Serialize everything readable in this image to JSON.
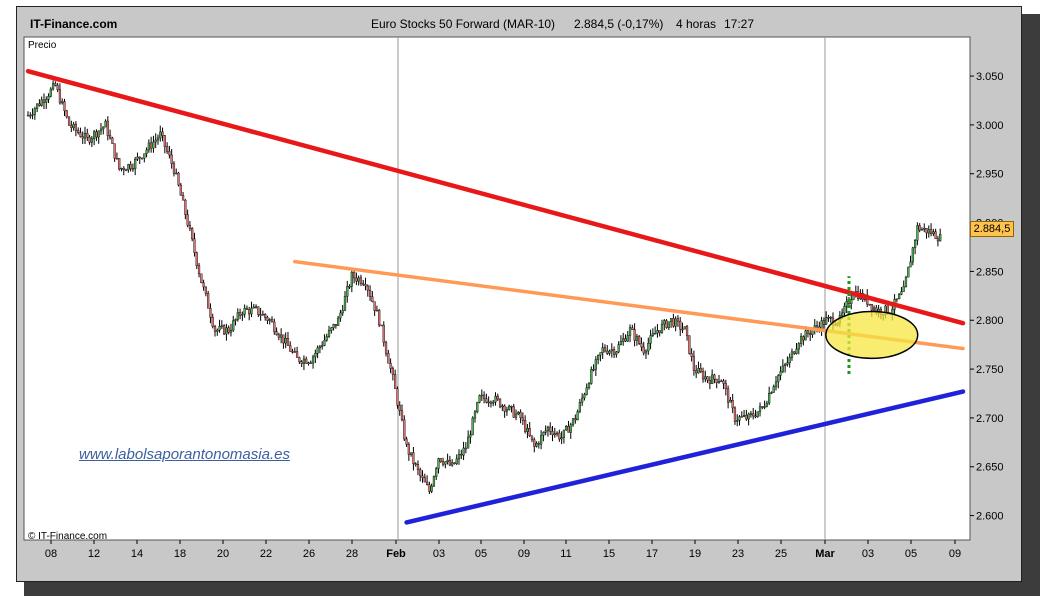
{
  "header": {
    "site": "IT-Finance.com",
    "instrument": "Euro Stocks 50 Forward (MAR-10)",
    "last": "2.884,5 (-0,17%)",
    "timeframe": "4 horas",
    "time": "17:27"
  },
  "chart_data": {
    "type": "candlestick",
    "title": "Euro Stocks 50 Forward (MAR-10)",
    "ylabel": "Precio",
    "ylim": [
      2575,
      3090
    ],
    "yticks": [
      "2.600",
      "2.650",
      "2.700",
      "2.750",
      "2.800",
      "2.850",
      "2.900",
      "2.950",
      "3.000",
      "3.050"
    ],
    "ytick_values": [
      2600,
      2650,
      2700,
      2750,
      2800,
      2850,
      2900,
      2950,
      3000,
      3050
    ],
    "xtick_labels": [
      "08",
      "12",
      "14",
      "18",
      "20",
      "22",
      "26",
      "28",
      "Feb",
      "03",
      "05",
      "09",
      "11",
      "15",
      "17",
      "19",
      "23",
      "25",
      "Mar",
      "03",
      "05",
      "09"
    ],
    "month_separators": [
      "Feb",
      "Mar"
    ],
    "last_price": "2.884,5",
    "last_price_value": 2884.5,
    "copyright": "© IT-Finance.com",
    "watermark": "www.labolsaporantonomasia.es",
    "grid": false,
    "colors": {
      "up": "#4caf50",
      "down": "#e07070",
      "resistance": "#e81818",
      "trend_mid": "#ff9955",
      "support": "#1f22d8",
      "signal": "#169a16",
      "highlight": "#f5e642"
    },
    "price_path_anchors": [
      [
        0,
        3010
      ],
      [
        6,
        3025
      ],
      [
        12,
        3040
      ],
      [
        18,
        3000
      ],
      [
        26,
        2985
      ],
      [
        34,
        3000
      ],
      [
        40,
        2955
      ],
      [
        46,
        2960
      ],
      [
        52,
        2975
      ],
      [
        58,
        2990
      ],
      [
        64,
        2955
      ],
      [
        70,
        2900
      ],
      [
        76,
        2840
      ],
      [
        82,
        2790
      ],
      [
        88,
        2790
      ],
      [
        94,
        2810
      ],
      [
        100,
        2810
      ],
      [
        106,
        2800
      ],
      [
        112,
        2780
      ],
      [
        118,
        2760
      ],
      [
        124,
        2760
      ],
      [
        130,
        2780
      ],
      [
        136,
        2800
      ],
      [
        142,
        2845
      ],
      [
        148,
        2840
      ],
      [
        154,
        2800
      ],
      [
        160,
        2740
      ],
      [
        166,
        2670
      ],
      [
        172,
        2640
      ],
      [
        176,
        2625
      ],
      [
        180,
        2660
      ],
      [
        186,
        2650
      ],
      [
        192,
        2670
      ],
      [
        198,
        2720
      ],
      [
        204,
        2720
      ],
      [
        210,
        2710
      ],
      [
        216,
        2700
      ],
      [
        222,
        2670
      ],
      [
        228,
        2690
      ],
      [
        234,
        2680
      ],
      [
        240,
        2700
      ],
      [
        246,
        2740
      ],
      [
        252,
        2770
      ],
      [
        258,
        2770
      ],
      [
        264,
        2790
      ],
      [
        270,
        2770
      ],
      [
        276,
        2790
      ],
      [
        282,
        2800
      ],
      [
        288,
        2790
      ],
      [
        292,
        2750
      ],
      [
        298,
        2740
      ],
      [
        304,
        2740
      ],
      [
        310,
        2700
      ],
      [
        316,
        2700
      ],
      [
        322,
        2710
      ],
      [
        328,
        2740
      ],
      [
        334,
        2760
      ],
      [
        338,
        2780
      ],
      [
        344,
        2790
      ],
      [
        350,
        2800
      ],
      [
        356,
        2800
      ],
      [
        362,
        2830
      ],
      [
        368,
        2820
      ],
      [
        372,
        2810
      ],
      [
        378,
        2810
      ],
      [
        384,
        2830
      ],
      [
        390,
        2895
      ],
      [
        396,
        2890
      ],
      [
        400,
        2884.5
      ]
    ],
    "candles_count": 400,
    "trendlines": [
      {
        "name": "resistance",
        "color": "#e81818",
        "from": [
          0,
          3055
        ],
        "to": [
          410,
          2797
        ]
      },
      {
        "name": "trend_mid",
        "color": "#ff9955",
        "from": [
          117,
          2860
        ],
        "to": [
          410,
          2771
        ]
      },
      {
        "name": "support",
        "color": "#1f22d8",
        "from": [
          166,
          2593
        ],
        "to": [
          410,
          2727
        ]
      }
    ],
    "signal_line": {
      "x": 360,
      "from": 2745,
      "to": 2845
    },
    "highlight_ellipse": {
      "center": [
        370,
        2785
      ],
      "rx": 14,
      "ry": 24
    }
  }
}
